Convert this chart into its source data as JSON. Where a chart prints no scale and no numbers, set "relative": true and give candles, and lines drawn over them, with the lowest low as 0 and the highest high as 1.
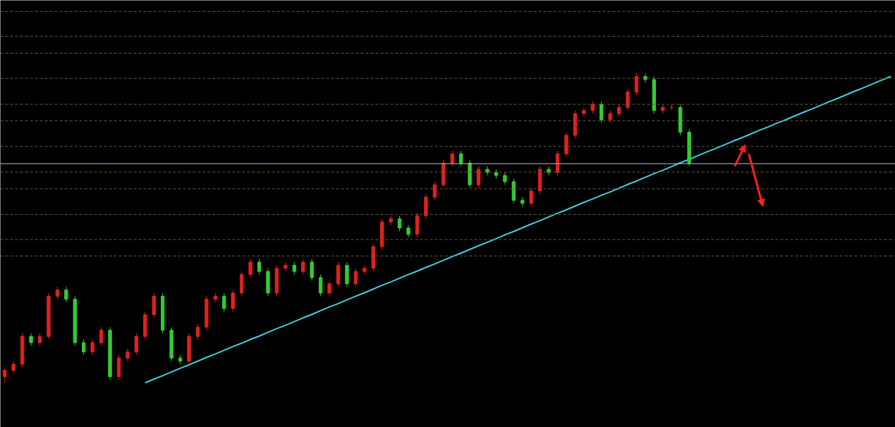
{
  "chart_data": {
    "type": "candlestick",
    "relative": true,
    "categories": [
      null,
      null,
      null,
      null,
      null,
      null,
      null,
      null,
      null,
      null,
      null,
      null,
      null,
      null,
      null,
      null,
      null,
      null,
      null,
      null,
      null,
      null,
      null,
      null,
      null,
      null,
      null,
      null,
      null,
      null,
      null,
      null,
      null,
      null,
      null,
      null,
      null,
      null,
      null,
      null,
      null,
      null,
      null,
      null,
      null,
      null,
      null,
      null,
      null,
      null,
      null,
      null,
      null,
      null,
      null,
      null,
      null,
      null,
      null,
      null,
      null,
      null,
      null,
      null,
      null,
      null,
      null,
      null,
      null,
      null,
      null,
      null,
      null,
      null,
      null,
      null,
      null,
      null,
      null,
      null,
      null,
      null,
      null,
      null,
      null,
      null,
      null,
      null,
      null,
      null,
      null,
      null,
      null,
      null,
      null,
      null,
      null,
      null,
      null,
      null,
      null,
      null
    ],
    "colors": [
      "#e02020",
      "#e02020",
      "#e02020",
      "#33cc33",
      "#e02020",
      "#e02020",
      "#e02020",
      "#33cc33",
      "#33cc33",
      "#33cc33",
      "#e02020",
      "#e02020",
      "#33cc33",
      "#e02020",
      "#e02020",
      "#e02020",
      "#e02020",
      "#e02020",
      "#33cc33",
      "#33cc33",
      "#33cc33",
      "#e02020",
      "#e02020",
      "#e02020",
      "#e02020",
      "#33cc33",
      "#e02020",
      "#e02020",
      "#e02020",
      "#33cc33",
      "#33cc33",
      "#e02020",
      "#e02020",
      "#33cc33",
      "#e02020",
      "#33cc33",
      "#33cc33",
      "#e02020",
      "#e02020",
      "#33cc33",
      "#e02020",
      "#e02020",
      "#e02020",
      "#e02020",
      "#e02020",
      "#33cc33",
      "#33cc33",
      "#e02020",
      "#e02020",
      "#e02020",
      "#e02020",
      "#e02020",
      "#33cc33",
      "#33cc33",
      "#e02020",
      "#33cc33",
      "#33cc33",
      "#33cc33",
      "#33cc33",
      "#33cc33",
      "#e02020",
      "#e02020",
      "#33cc33",
      "#e02020",
      "#e02020",
      "#e02020",
      "#e02020",
      "#e02020",
      "#33cc33",
      "#e02020",
      "#e02020",
      "#e02020",
      "#e02020",
      "#33cc33",
      "#33cc33",
      "#e02020",
      "#e02020",
      "#33cc33",
      "#33cc33",
      null,
      null,
      null,
      null,
      null,
      null,
      null,
      null,
      null,
      null,
      null,
      null,
      null,
      null,
      null,
      null,
      null,
      null,
      null,
      null,
      null,
      null,
      null
    ],
    "ohlc": [
      [
        0.02,
        0.05,
        0.0,
        0.04
      ],
      [
        0.04,
        0.07,
        0.03,
        0.06
      ],
      [
        0.06,
        0.16,
        0.05,
        0.15
      ],
      [
        0.15,
        0.16,
        0.12,
        0.13
      ],
      [
        0.13,
        0.16,
        0.12,
        0.15
      ],
      [
        0.15,
        0.29,
        0.14,
        0.28
      ],
      [
        0.28,
        0.31,
        0.27,
        0.3
      ],
      [
        0.3,
        0.31,
        0.26,
        0.27
      ],
      [
        0.27,
        0.28,
        0.12,
        0.13
      ],
      [
        0.13,
        0.14,
        0.09,
        0.1
      ],
      [
        0.1,
        0.14,
        0.09,
        0.13
      ],
      [
        0.13,
        0.18,
        0.12,
        0.17
      ],
      [
        0.17,
        0.18,
        0.01,
        0.02
      ],
      [
        0.02,
        0.09,
        0.01,
        0.08
      ],
      [
        0.08,
        0.11,
        0.07,
        0.1
      ],
      [
        0.1,
        0.16,
        0.09,
        0.15
      ],
      [
        0.15,
        0.23,
        0.14,
        0.22
      ],
      [
        0.22,
        0.29,
        0.21,
        0.28
      ],
      [
        0.28,
        0.29,
        0.16,
        0.17
      ],
      [
        0.17,
        0.18,
        0.07,
        0.08
      ],
      [
        0.08,
        0.09,
        0.06,
        0.07
      ],
      [
        0.07,
        0.16,
        0.06,
        0.15
      ],
      [
        0.15,
        0.19,
        0.14,
        0.18
      ],
      [
        0.18,
        0.28,
        0.17,
        0.27
      ],
      [
        0.27,
        0.29,
        0.26,
        0.28
      ],
      [
        0.28,
        0.29,
        0.23,
        0.24
      ],
      [
        0.24,
        0.3,
        0.23,
        0.29
      ],
      [
        0.29,
        0.36,
        0.28,
        0.35
      ],
      [
        0.35,
        0.4,
        0.34,
        0.39
      ],
      [
        0.39,
        0.4,
        0.35,
        0.36
      ],
      [
        0.36,
        0.37,
        0.28,
        0.29
      ],
      [
        0.29,
        0.38,
        0.28,
        0.37
      ],
      [
        0.37,
        0.39,
        0.36,
        0.38
      ],
      [
        0.38,
        0.39,
        0.35,
        0.36
      ],
      [
        0.36,
        0.4,
        0.35,
        0.39
      ],
      [
        0.39,
        0.4,
        0.33,
        0.34
      ],
      [
        0.34,
        0.35,
        0.28,
        0.29
      ],
      [
        0.29,
        0.33,
        0.28,
        0.32
      ],
      [
        0.32,
        0.39,
        0.31,
        0.38
      ],
      [
        0.38,
        0.39,
        0.31,
        0.32
      ],
      [
        0.32,
        0.37,
        0.31,
        0.36
      ],
      [
        0.36,
        0.38,
        0.35,
        0.37
      ],
      [
        0.37,
        0.45,
        0.36,
        0.44
      ],
      [
        0.44,
        0.53,
        0.43,
        0.52
      ],
      [
        0.52,
        0.54,
        0.51,
        0.53
      ],
      [
        0.53,
        0.54,
        0.49,
        0.5
      ],
      [
        0.5,
        0.51,
        0.47,
        0.48
      ],
      [
        0.48,
        0.55,
        0.47,
        0.54
      ],
      [
        0.54,
        0.61,
        0.53,
        0.6
      ],
      [
        0.6,
        0.65,
        0.59,
        0.64
      ],
      [
        0.64,
        0.72,
        0.63,
        0.71
      ],
      [
        0.71,
        0.75,
        0.7,
        0.74
      ],
      [
        0.74,
        0.75,
        0.7,
        0.71
      ],
      [
        0.71,
        0.72,
        0.63,
        0.64
      ],
      [
        0.64,
        0.7,
        0.63,
        0.69
      ],
      [
        0.69,
        0.7,
        0.67,
        0.68
      ],
      [
        0.68,
        0.69,
        0.66,
        0.67
      ],
      [
        0.67,
        0.68,
        0.64,
        0.65
      ],
      [
        0.65,
        0.66,
        0.58,
        0.59
      ],
      [
        0.59,
        0.6,
        0.57,
        0.58
      ],
      [
        0.58,
        0.63,
        0.57,
        0.62
      ],
      [
        0.62,
        0.7,
        0.61,
        0.69
      ],
      [
        0.69,
        0.7,
        0.67,
        0.68
      ],
      [
        0.68,
        0.75,
        0.67,
        0.74
      ],
      [
        0.74,
        0.81,
        0.73,
        0.8
      ],
      [
        0.8,
        0.88,
        0.79,
        0.87
      ],
      [
        0.87,
        0.89,
        0.86,
        0.88
      ],
      [
        0.88,
        0.91,
        0.87,
        0.9
      ],
      [
        0.9,
        0.91,
        0.84,
        0.85
      ],
      [
        0.85,
        0.88,
        0.84,
        0.87
      ],
      [
        0.87,
        0.9,
        0.86,
        0.89
      ],
      [
        0.89,
        0.95,
        0.88,
        0.94
      ],
      [
        0.94,
        1.0,
        0.93,
        0.99
      ],
      [
        0.99,
        1.0,
        0.97,
        0.98
      ],
      [
        0.98,
        0.99,
        0.87,
        0.88
      ],
      [
        0.88,
        0.9,
        0.87,
        0.89
      ],
      [
        0.89,
        0.9,
        0.88,
        0.89
      ],
      [
        0.89,
        0.9,
        0.8,
        0.81
      ],
      [
        0.81,
        0.82,
        0.7,
        0.71
      ],
      null,
      null,
      null,
      null,
      null,
      null,
      null,
      null,
      null,
      null,
      null,
      null,
      null,
      null,
      null,
      null,
      null,
      null,
      null,
      null,
      null,
      null,
      null
    ],
    "series": [
      {
        "type": "line",
        "color": "#40d0e0",
        "values": [
          null,
          null,
          null,
          null,
          null,
          null,
          null,
          null,
          null,
          null,
          null,
          null,
          null,
          null,
          null,
          null,
          0.0,
          0.012,
          0.023,
          0.035,
          0.047,
          0.058,
          0.07,
          0.082,
          0.093,
          0.105,
          0.117,
          0.128,
          0.14,
          0.151,
          0.163,
          0.175,
          0.186,
          0.198,
          0.21,
          0.221,
          0.233,
          0.245,
          0.256,
          0.268,
          0.28,
          0.291,
          0.303,
          0.315,
          0.326,
          0.338,
          0.35,
          0.361,
          0.373,
          0.384,
          0.396,
          0.408,
          0.419,
          0.431,
          0.443,
          0.454,
          0.466,
          0.478,
          0.489,
          0.501,
          0.513,
          0.524,
          0.536,
          0.548,
          0.559,
          0.571,
          0.583,
          0.594,
          0.606,
          0.617,
          0.629,
          0.641,
          0.652,
          0.664,
          0.676,
          0.687,
          0.699,
          0.711,
          0.722,
          0.734,
          0.746,
          0.757,
          0.769,
          0.781,
          0.792,
          0.804,
          0.816,
          0.827,
          0.839,
          0.85,
          0.862,
          0.874,
          0.885,
          0.897,
          0.909,
          0.92,
          0.932,
          0.944,
          0.955,
          0.967,
          0.979,
          0.99
        ]
      }
    ],
    "ref_lines": [
      {
        "axis": "y",
        "value": 1.2,
        "color": "#6e5a48",
        "line_style": "dashed"
      },
      {
        "axis": "y",
        "value": 1.12,
        "color": "#6e5a48",
        "line_style": "dashed"
      },
      {
        "axis": "y",
        "value": 1.065,
        "color": "#6e5a48",
        "line_style": "dashed"
      },
      {
        "axis": "y",
        "value": 0.984,
        "color": "#6e5a48",
        "line_style": "dashed"
      },
      {
        "axis": "y",
        "value": 0.9,
        "color": "#6e5a48",
        "line_style": "dashed"
      },
      {
        "axis": "y",
        "value": 0.847,
        "color": "#6e5a48",
        "line_style": "dashed"
      },
      {
        "axis": "y",
        "value": 0.764,
        "color": "#6e5a48",
        "line_style": "dashed"
      },
      {
        "axis": "y",
        "value": 0.708,
        "color": "#9fc8d8",
        "line_style": "solid"
      },
      {
        "axis": "y",
        "value": 0.681,
        "color": "#6e5a48",
        "line_style": "dashed"
      },
      {
        "axis": "y",
        "value": 0.627,
        "color": "#6e5a48",
        "line_style": "dashed"
      },
      {
        "axis": "y",
        "value": 0.544,
        "color": "#6e5a48",
        "line_style": "dashed"
      },
      {
        "axis": "y",
        "value": 0.463,
        "color": "#6e5a48",
        "line_style": "dashed"
      },
      {
        "axis": "y",
        "value": 0.41,
        "color": "#6e5a48",
        "line_style": "dashed"
      }
    ]
  }
}
